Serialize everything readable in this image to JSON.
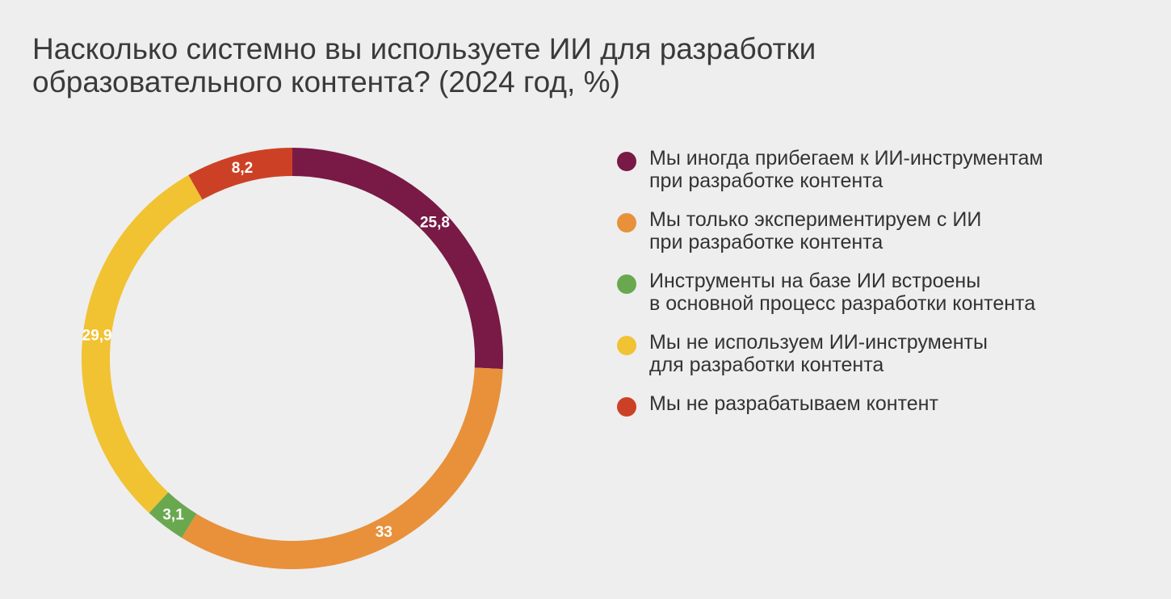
{
  "chart_data": {
    "type": "pie",
    "style": "donut",
    "title_lines": [
      "Насколько системно вы используете ИИ для разработки",
      "образовательного контента? (2024 год, %)"
    ],
    "legend_position": "right",
    "slices": [
      {
        "value": 25.8,
        "label": "25,8",
        "color": "#781a45",
        "legend_lines": [
          "Мы иногда прибегаем к ИИ-инструментам",
          "при разработке контента"
        ]
      },
      {
        "value": 33,
        "label": "33",
        "color": "#e8913a",
        "legend_lines": [
          "Мы только экспериментируем с ИИ",
          "при разработке контента"
        ]
      },
      {
        "value": 3.1,
        "label": "3,1",
        "color": "#6aa84f",
        "legend_lines": [
          "Инструменты на базе ИИ встроены",
          "в основной процесс разработки контента"
        ]
      },
      {
        "value": 29.9,
        "label": "29,9",
        "color": "#f1c232",
        "legend_lines": [
          "Мы не используем ИИ-инструменты",
          "для разработки контента"
        ]
      },
      {
        "value": 8.2,
        "label": "8,2",
        "color": "#cc4125",
        "legend_lines": [
          "Мы не разрабатываем контент"
        ]
      }
    ]
  }
}
